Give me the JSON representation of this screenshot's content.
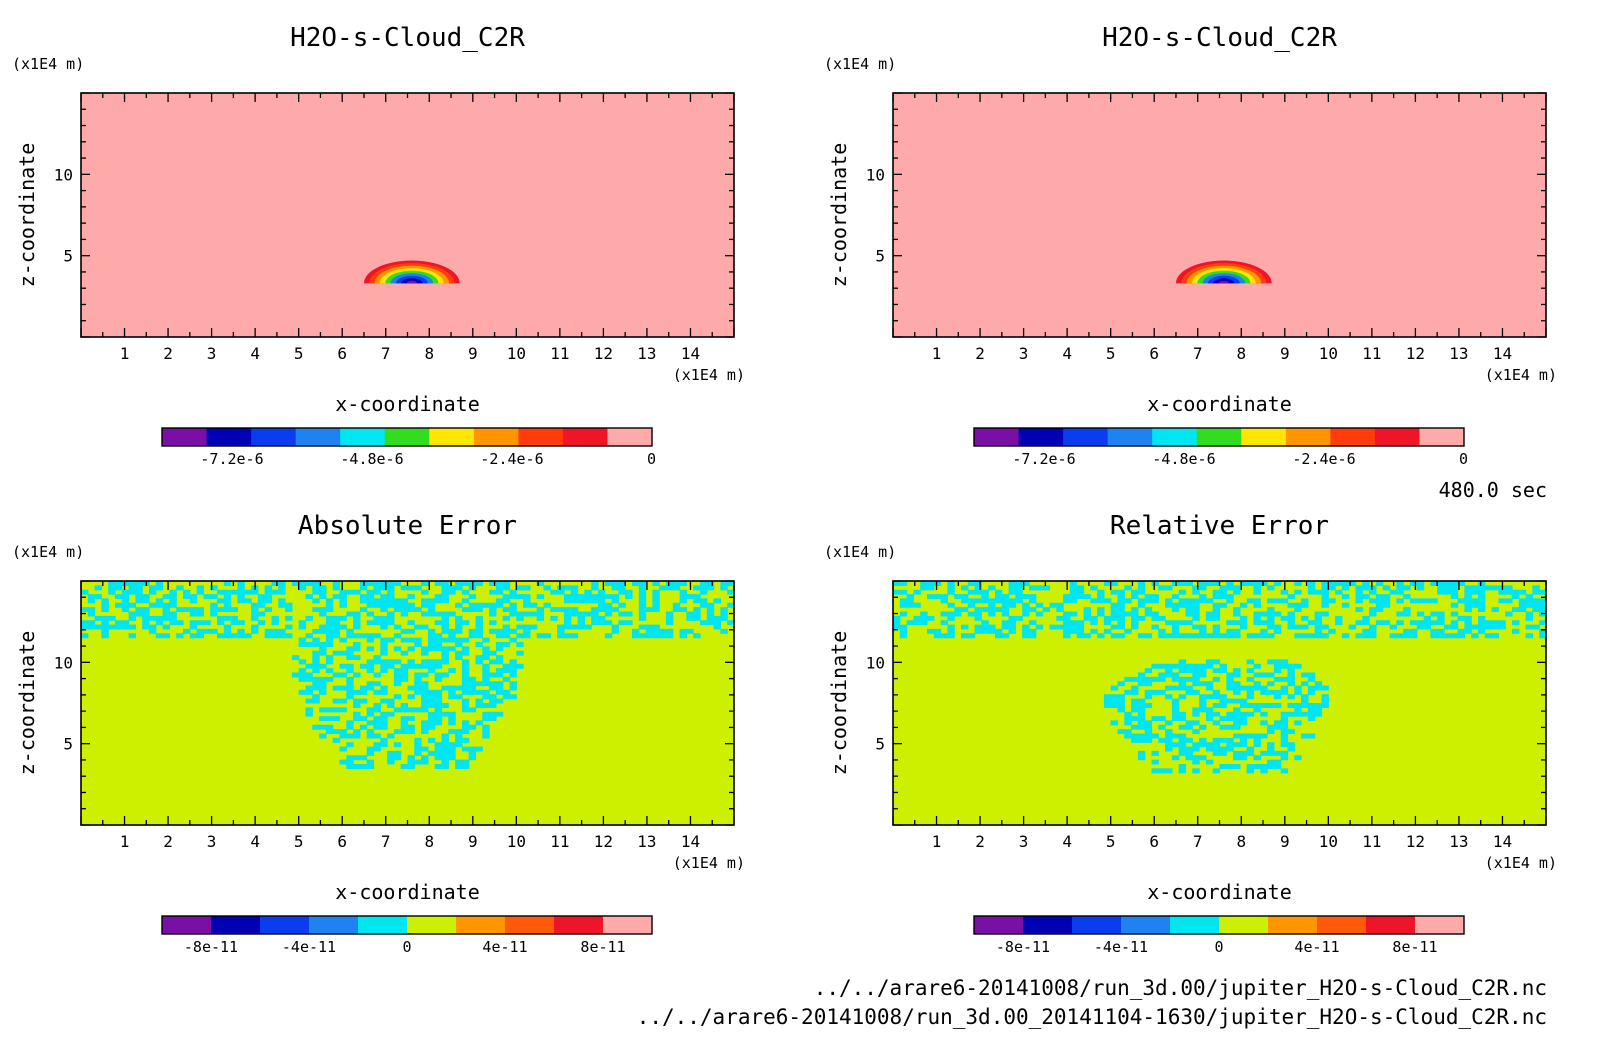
{
  "figure": {
    "time_label": "480.0 sec",
    "files": [
      "../../arare6-20141008/run_3d.00/jupiter_H2O-s-Cloud_C2R.nc",
      "../../arare6-20141008/run_3d.00_20141104-1630/jupiter_H2O-s-Cloud_C2R.nc"
    ]
  },
  "chart_data": [
    {
      "type": "heatmap",
      "title": "H2O-s-Cloud_C2R",
      "xlabel": "x-coordinate",
      "ylabel": "z-coordinate",
      "x_unit": "(x1E4 m)",
      "y_unit": "(x1E4 m)",
      "xlim": [
        0,
        15
      ],
      "ylim": [
        0,
        15
      ],
      "xticks": [
        1,
        2,
        3,
        4,
        5,
        6,
        7,
        8,
        9,
        10,
        11,
        12,
        13,
        14
      ],
      "yticks": [
        5,
        10
      ],
      "background_value": 0,
      "feature": {
        "shape": "dome",
        "x_range": [
          6.5,
          8.7
        ],
        "z_range": [
          3.3,
          4.7
        ],
        "min_value": -8.4e-06
      },
      "colorbar": {
        "min": -8.4e-06,
        "max": 0,
        "colors": [
          "#7a0fa6",
          "#0000b4",
          "#0a3cf0",
          "#1e82f0",
          "#00e6f0",
          "#32dc1e",
          "#ffe600",
          "#ff9600",
          "#ff3c0a",
          "#f01428",
          "#ffaaaa"
        ],
        "ticks": [
          {
            "value": -7.2e-06,
            "label": "-7.2e-6"
          },
          {
            "value": -4.8e-06,
            "label": "-4.8e-6"
          },
          {
            "value": -2.4e-06,
            "label": "-2.4e-6"
          },
          {
            "value": 0,
            "label": "0"
          }
        ]
      }
    },
    {
      "type": "heatmap",
      "title": "H2O-s-Cloud_C2R",
      "xlabel": "x-coordinate",
      "ylabel": "z-coordinate",
      "x_unit": "(x1E4 m)",
      "y_unit": "(x1E4 m)",
      "xlim": [
        0,
        15
      ],
      "ylim": [
        0,
        15
      ],
      "xticks": [
        1,
        2,
        3,
        4,
        5,
        6,
        7,
        8,
        9,
        10,
        11,
        12,
        13,
        14
      ],
      "yticks": [
        5,
        10
      ],
      "background_value": 0,
      "feature": {
        "shape": "dome",
        "x_range": [
          6.5,
          8.7
        ],
        "z_range": [
          3.3,
          4.7
        ],
        "min_value": -8.4e-06
      },
      "colorbar": {
        "min": -8.4e-06,
        "max": 0,
        "colors": [
          "#7a0fa6",
          "#0000b4",
          "#0a3cf0",
          "#1e82f0",
          "#00e6f0",
          "#32dc1e",
          "#ffe600",
          "#ff9600",
          "#ff3c0a",
          "#f01428",
          "#ffaaaa"
        ],
        "ticks": [
          {
            "value": -7.2e-06,
            "label": "-7.2e-6"
          },
          {
            "value": -4.8e-06,
            "label": "-4.8e-6"
          },
          {
            "value": -2.4e-06,
            "label": "-2.4e-6"
          },
          {
            "value": 0,
            "label": "0"
          }
        ]
      }
    },
    {
      "type": "heatmap",
      "title": "Absolute Error",
      "xlabel": "x-coordinate",
      "ylabel": "z-coordinate",
      "x_unit": "(x1E4 m)",
      "y_unit": "(x1E4 m)",
      "xlim": [
        0,
        15
      ],
      "ylim": [
        0,
        15
      ],
      "xticks": [
        1,
        2,
        3,
        4,
        5,
        6,
        7,
        8,
        9,
        10,
        11,
        12,
        13,
        14
      ],
      "yticks": [
        5,
        10
      ],
      "background_value": 0,
      "noise": {
        "top_band_z": [
          11.5,
          15
        ],
        "region": [
          [
            4.9,
            11.4
          ],
          [
            10.2,
            11.4
          ],
          [
            10.2,
            9.0
          ],
          [
            9.5,
            6.0
          ],
          [
            8.8,
            3.4
          ],
          [
            6.1,
            3.4
          ],
          [
            5.3,
            6.0
          ],
          [
            4.9,
            9.0
          ]
        ],
        "values": [
          0,
          -1e-11
        ]
      },
      "colorbar": {
        "min": -1e-10,
        "max": 1e-10,
        "colors": [
          "#7a0fa6",
          "#0000b4",
          "#0a3cf0",
          "#1e82f0",
          "#00e6f0",
          "#ccf000",
          "#ff9600",
          "#ff5a0a",
          "#f01428",
          "#ffaaaa"
        ],
        "ticks": [
          {
            "value": -8e-11,
            "label": "-8e-11"
          },
          {
            "value": -4e-11,
            "label": "-4e-11"
          },
          {
            "value": 0,
            "label": "0"
          },
          {
            "value": 4e-11,
            "label": "4e-11"
          },
          {
            "value": 8e-11,
            "label": "8e-11"
          }
        ]
      }
    },
    {
      "type": "heatmap",
      "title": "Relative Error",
      "xlabel": "x-coordinate",
      "ylabel": "z-coordinate",
      "x_unit": "(x1E4 m)",
      "y_unit": "(x1E4 m)",
      "xlim": [
        0,
        15
      ],
      "ylim": [
        0,
        15
      ],
      "xticks": [
        1,
        2,
        3,
        4,
        5,
        6,
        7,
        8,
        9,
        10,
        11,
        12,
        13,
        14
      ],
      "yticks": [
        5,
        10
      ],
      "background_value": 0,
      "noise": {
        "top_band_z": [
          11.5,
          15
        ],
        "region": [
          [
            6.4,
            10.3
          ],
          [
            9.2,
            10.3
          ],
          [
            10.1,
            8.2
          ],
          [
            9.8,
            6.0
          ],
          [
            9.1,
            3.3
          ],
          [
            5.9,
            3.3
          ],
          [
            5.1,
            6.0
          ],
          [
            4.8,
            8.2
          ]
        ],
        "values": [
          0,
          -1e-11
        ]
      },
      "colorbar": {
        "min": -1e-10,
        "max": 1e-10,
        "colors": [
          "#7a0fa6",
          "#0000b4",
          "#0a3cf0",
          "#1e82f0",
          "#00e6f0",
          "#ccf000",
          "#ff9600",
          "#ff5a0a",
          "#f01428",
          "#ffaaaa"
        ],
        "ticks": [
          {
            "value": -8e-11,
            "label": "-8e-11"
          },
          {
            "value": -4e-11,
            "label": "-4e-11"
          },
          {
            "value": 0,
            "label": "0"
          },
          {
            "value": 4e-11,
            "label": "4e-11"
          },
          {
            "value": 8e-11,
            "label": "8e-11"
          }
        ]
      }
    }
  ]
}
